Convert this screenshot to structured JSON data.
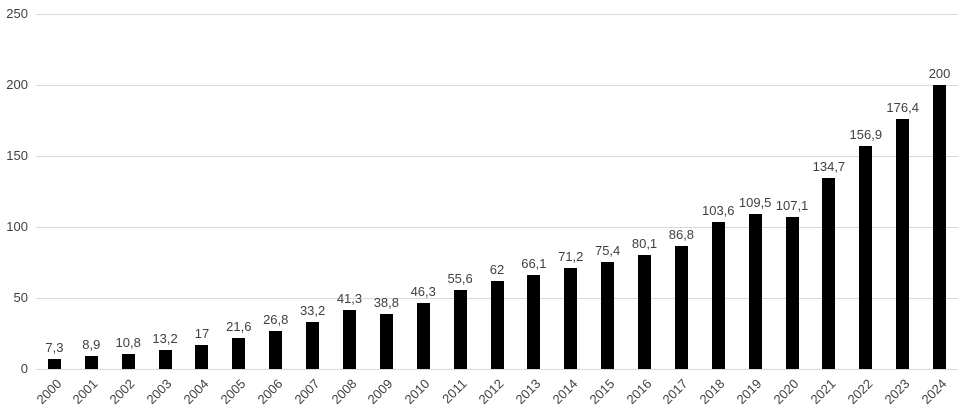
{
  "chart_data": {
    "type": "bar",
    "title": "",
    "xlabel": "",
    "ylabel": "",
    "categories": [
      "2000",
      "2001",
      "2002",
      "2003",
      "2004",
      "2005",
      "2006",
      "2007",
      "2008",
      "2009",
      "2010",
      "2011",
      "2012",
      "2013",
      "2014",
      "2015",
      "2016",
      "2017",
      "2018",
      "2019",
      "2020",
      "2021",
      "2022",
      "2023",
      "2024"
    ],
    "values": [
      7.3,
      8.9,
      10.8,
      13.2,
      17,
      21.6,
      26.8,
      33.2,
      41.3,
      38.8,
      46.3,
      55.6,
      62,
      66.1,
      71.2,
      75.4,
      80.1,
      86.8,
      103.6,
      109.5,
      107.1,
      134.7,
      156.9,
      176.4,
      200
    ],
    "data_labels": [
      "7,3",
      "8,9",
      "10,8",
      "13,2",
      "17",
      "21,6",
      "26,8",
      "33,2",
      "41,3",
      "38,8",
      "46,3",
      "55,6",
      "62",
      "66,1",
      "71,2",
      "75,4",
      "80,1",
      "86,8",
      "103,6",
      "109,5",
      "107,1",
      "134,7",
      "156,9",
      "176,4",
      "200"
    ],
    "ylim": [
      0,
      250
    ],
    "yticks": [
      0,
      50,
      100,
      150,
      200,
      250
    ],
    "grid": true,
    "legend": "none",
    "bar_color": "#000000",
    "gridline_color": "#d9d9d9",
    "label_color": "#404040"
  }
}
